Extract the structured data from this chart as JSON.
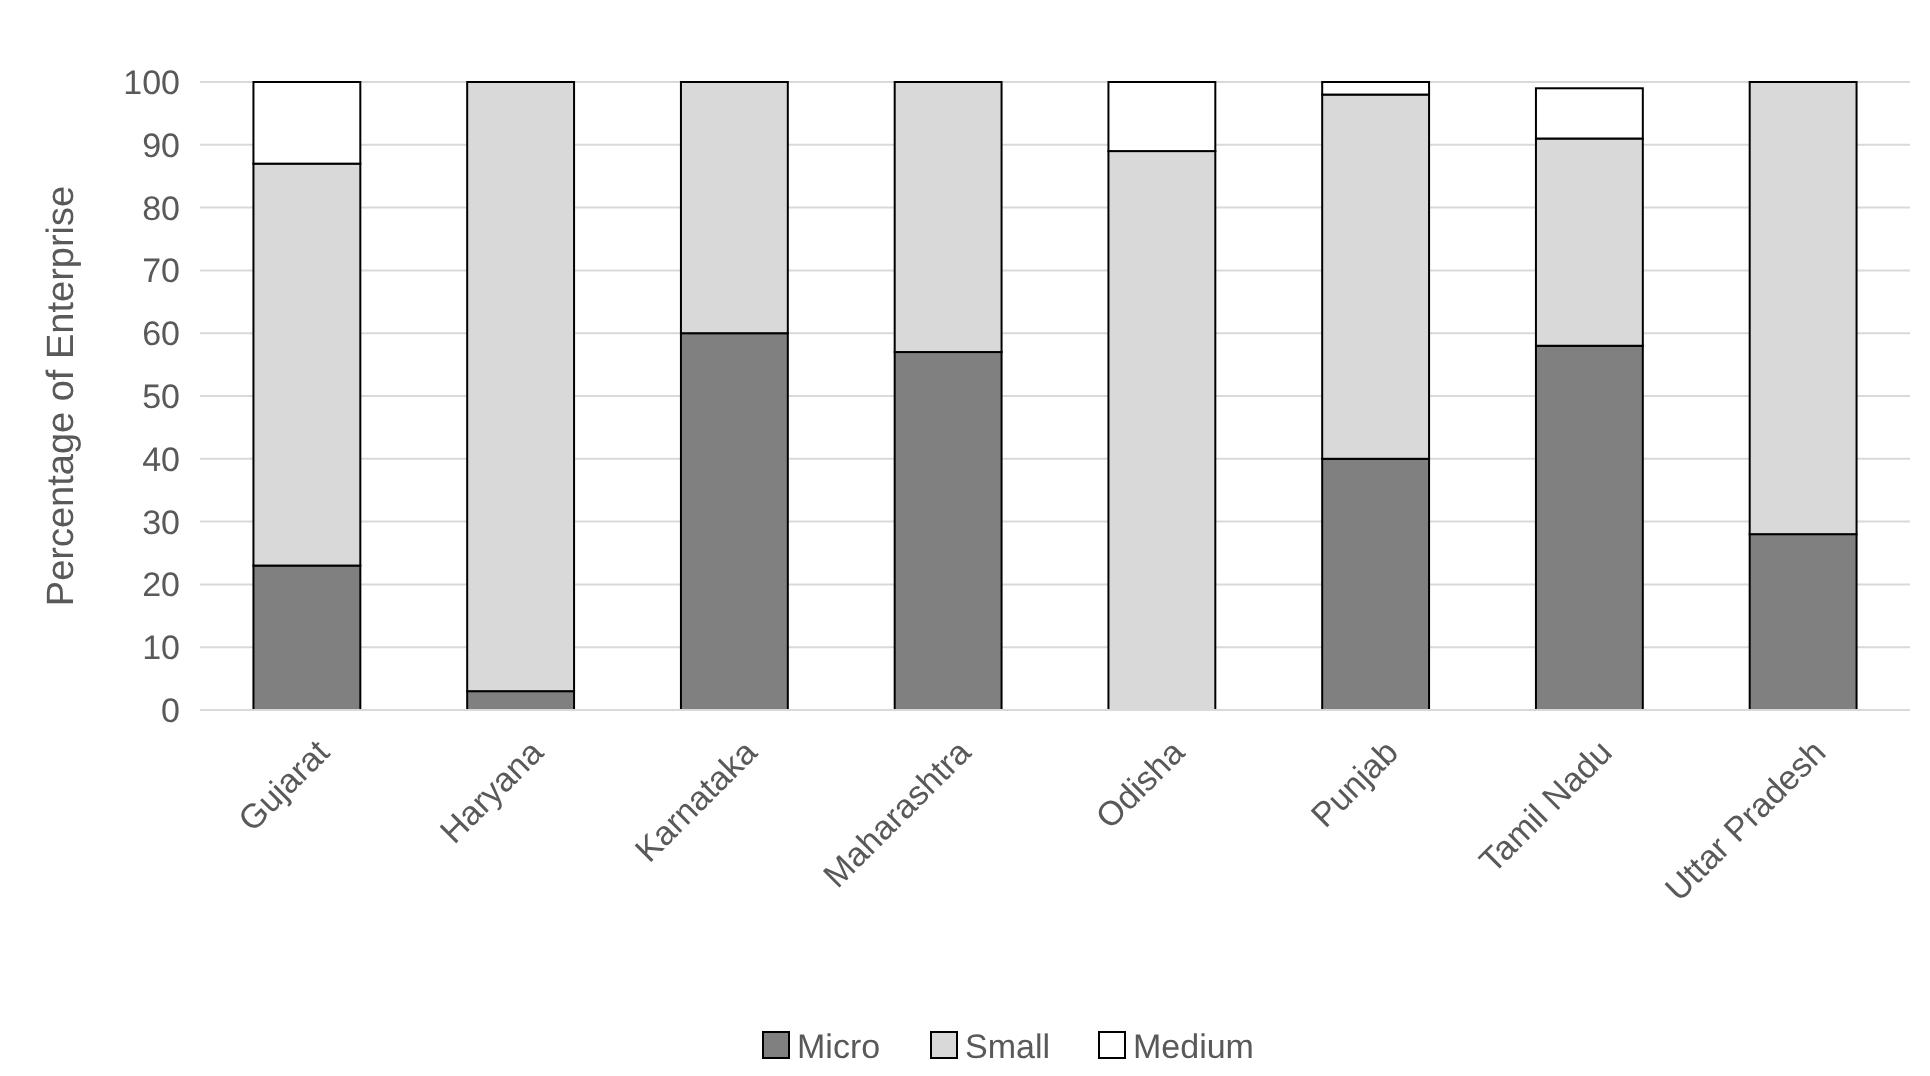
{
  "chart_data": {
    "type": "bar",
    "stacked": true,
    "ylabel": "Percentage of Enterprise",
    "categories": [
      "Gujarat",
      "Haryana",
      "Karnataka",
      "Maharashtra",
      "Odisha",
      "Punjab",
      "Tamil Nadu",
      "Uttar Pradesh"
    ],
    "series": [
      {
        "name": "Micro",
        "color": "#808080",
        "values": [
          23,
          3,
          60,
          57,
          0,
          40,
          58,
          28
        ]
      },
      {
        "name": "Small",
        "color": "#d9d9d9",
        "values": [
          64,
          97,
          40,
          43,
          89,
          58,
          33,
          72
        ]
      },
      {
        "name": "Medium",
        "color": "#ffffff",
        "values": [
          13,
          0,
          0,
          0,
          11,
          2,
          8,
          0
        ]
      }
    ],
    "ylim": [
      0,
      100
    ],
    "yticks": [
      0,
      10,
      20,
      30,
      40,
      50,
      60,
      70,
      80,
      90,
      100
    ],
    "grid": "y",
    "legend": "bottom"
  }
}
